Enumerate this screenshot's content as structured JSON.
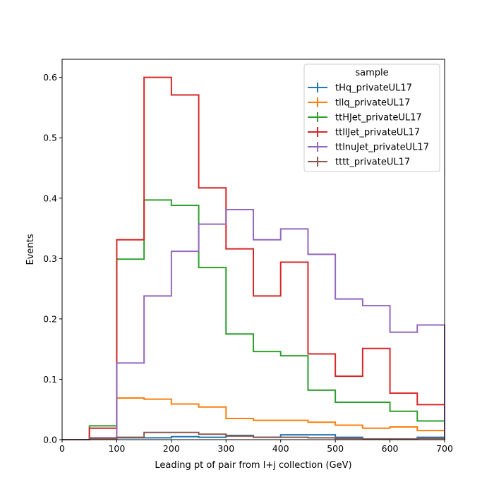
{
  "chart_data": {
    "type": "line",
    "xlabel": "Leading pt of pair from l+j collection (GeV)",
    "ylabel": "Events",
    "xlim": [
      0,
      700
    ],
    "ylim": [
      0,
      0.63
    ],
    "x_ticks": [
      "0",
      "100",
      "200",
      "300",
      "400",
      "500",
      "600",
      "700"
    ],
    "y_ticks": [
      "0.0",
      "0.1",
      "0.2",
      "0.3",
      "0.4",
      "0.5",
      "0.6"
    ],
    "grid": false,
    "legend_title": "sample",
    "legend_position": "top-right",
    "bin_edges": [
      0,
      50,
      100,
      150,
      200,
      250,
      300,
      350,
      400,
      450,
      500,
      550,
      600,
      650,
      700
    ],
    "series": [
      {
        "name": "tHq_privateUL17",
        "color": "#1f77b4",
        "values": [
          0,
          0.002,
          0.003,
          0.003,
          0.005,
          0.004,
          0.007,
          0.004,
          0.008,
          0.008,
          0.004,
          0.001,
          0.001,
          0.004
        ]
      },
      {
        "name": "tllq_privateUL17",
        "color": "#ff7f0e",
        "values": [
          0,
          0.002,
          0.069,
          0.067,
          0.059,
          0.054,
          0.035,
          0.032,
          0.032,
          0.029,
          0.024,
          0.019,
          0.021,
          0.015
        ]
      },
      {
        "name": "ttHJet_privateUL17",
        "color": "#2ca02c",
        "values": [
          0,
          0.023,
          0.299,
          0.397,
          0.388,
          0.285,
          0.175,
          0.146,
          0.139,
          0.082,
          0.062,
          0.062,
          0.047,
          0.031
        ]
      },
      {
        "name": "ttllJet_privateUL17",
        "color": "#d62728",
        "values": [
          0,
          0.019,
          0.331,
          0.6,
          0.571,
          0.417,
          0.316,
          0.238,
          0.294,
          0.142,
          0.105,
          0.151,
          0.077,
          0.058
        ]
      },
      {
        "name": "ttlnuJet_privateUL17",
        "color": "#9467bd",
        "values": [
          0,
          0.003,
          0.127,
          0.238,
          0.312,
          0.357,
          0.381,
          0.331,
          0.349,
          0.307,
          0.233,
          0.222,
          0.178,
          0.19
        ]
      },
      {
        "name": "tttt_privateUL17",
        "color": "#8c564b",
        "values": [
          0,
          0.002,
          0.004,
          0.012,
          0.012,
          0.009,
          0.006,
          0.004,
          0.004,
          0.003,
          0.002,
          0.001,
          0.001,
          0.002
        ]
      }
    ]
  }
}
